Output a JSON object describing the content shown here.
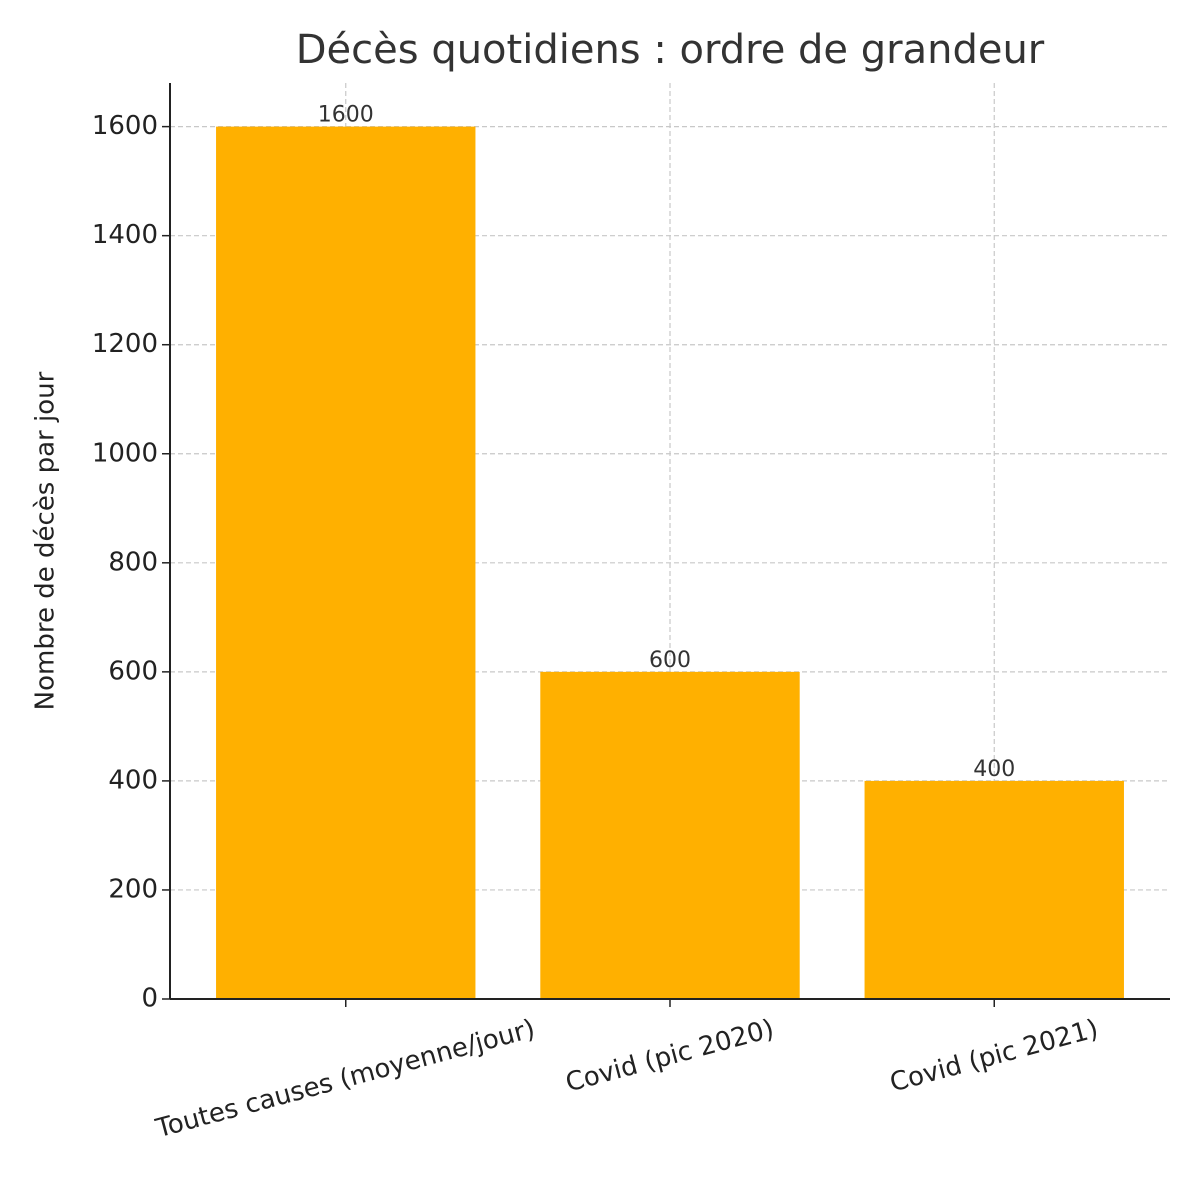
{
  "chart_data": {
    "type": "bar",
    "title": "Décès quotidiens : ordre de grandeur",
    "ylabel": "Nombre de décès par jour",
    "categories": [
      "Toutes causes (moyenne/jour)",
      "Covid (pic 2020)",
      "Covid (pic 2021)"
    ],
    "values": [
      1600,
      600,
      400
    ],
    "color": "#ffb000",
    "ylim": [
      0,
      1680
    ],
    "yticks": [
      0,
      200,
      400,
      600,
      800,
      1000,
      1200,
      1400,
      1600
    ],
    "grid": true
  }
}
